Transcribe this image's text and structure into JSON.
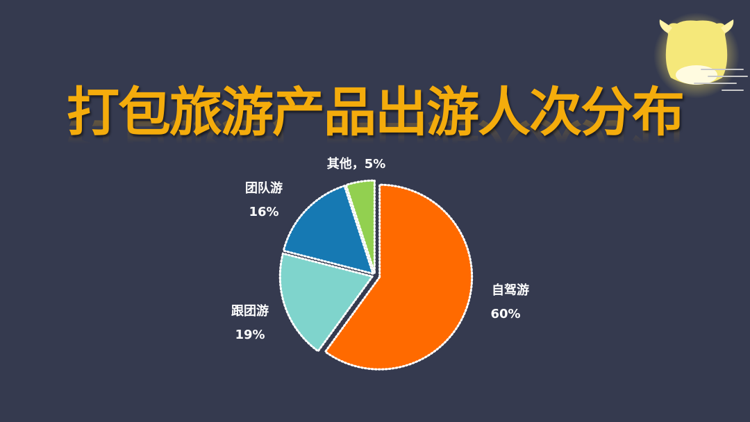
{
  "title": "打包旅游产品出游人次分布",
  "chart_data": {
    "type": "pie",
    "title": "打包旅游产品出游人次分布",
    "slices": [
      {
        "label": "自驾游",
        "value": 60,
        "display": "60%",
        "color": "#ff6a00"
      },
      {
        "label": "跟团游",
        "value": 19,
        "display": "19%",
        "color": "#7fd4cc"
      },
      {
        "label": "团队游",
        "value": 16,
        "display": "16%",
        "color": "#1679b3"
      },
      {
        "label": "其他",
        "value": 5,
        "display": "5%",
        "color": "#92d050"
      }
    ],
    "label_joined": "其他，5%",
    "start_angle_deg": 0,
    "direction": "clockwise",
    "slice_border": "white-dotted",
    "legend": "none"
  },
  "mascot": {
    "icon": "ox-mascot-icon",
    "color": "#f5e87a"
  }
}
